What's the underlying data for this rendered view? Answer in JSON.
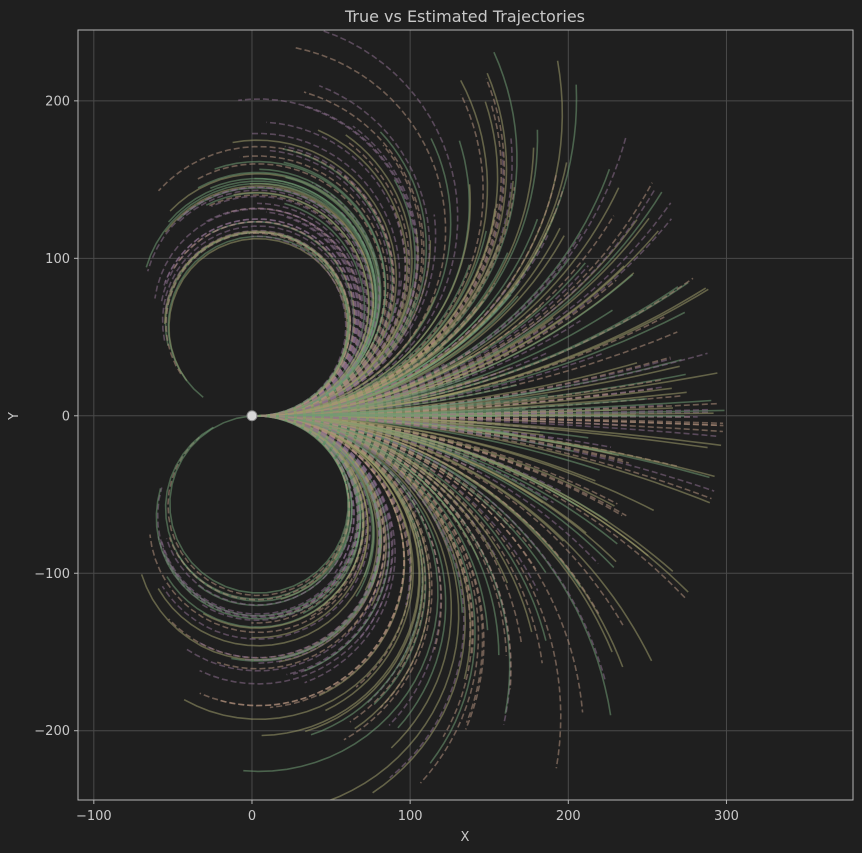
{
  "chart_data": {
    "type": "line",
    "title": "True vs Estimated Trajectories",
    "xlabel": "X",
    "ylabel": "Y",
    "xlim": [
      -110,
      380
    ],
    "ylim": [
      -244,
      245
    ],
    "xticks": [
      -100,
      0,
      100,
      200,
      300
    ],
    "yticks": [
      -200,
      -100,
      0,
      100,
      200
    ],
    "xtick_labels": [
      "−100",
      "0",
      "100",
      "200",
      "300"
    ],
    "ytick_labels": [
      "−200",
      "−100",
      "0",
      "100",
      "200"
    ],
    "grid": true,
    "legend": "none",
    "start_point": [
      0,
      0
    ],
    "series_styles": [
      {
        "name": "",
        "style": "solid",
        "color": "#9c9a6a"
      },
      {
        "name": "",
        "style": "dashed",
        "color": "#8a6d8c"
      },
      {
        "name": "",
        "style": "solid",
        "color": "#6f9a72"
      },
      {
        "name": "",
        "style": "dashed",
        "color": "#b08f7c"
      }
    ],
    "trajectory_family": {
      "description_values": "arc trajectories from origin, heading to x≈300 at y≈0, bending up to ±220",
      "max_range": 300
    }
  },
  "colors": {
    "background": "#1f1f1f",
    "axes_edge": "#b5b5b5",
    "grid": "#4a4a4a",
    "text": "#c8c8c8"
  }
}
